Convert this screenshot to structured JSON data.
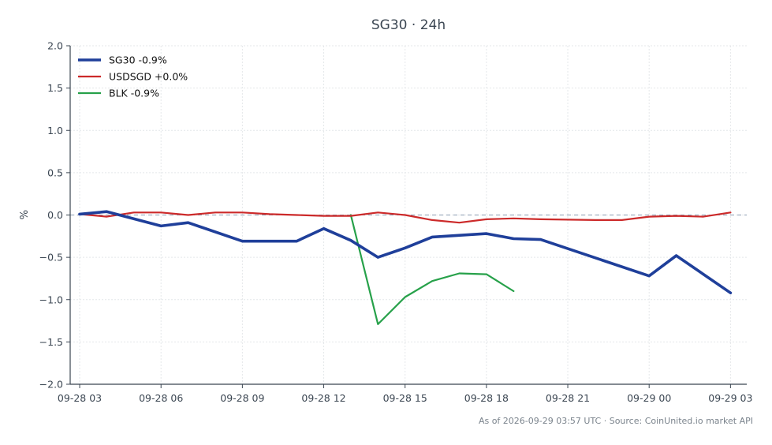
{
  "chart_data": {
    "type": "line",
    "title": "SG30 · 24h",
    "xlabel": "",
    "ylabel": "%",
    "ylim": [
      -2.0,
      2.0
    ],
    "xlim_hours": [
      -0.35,
      24.6
    ],
    "x_ticks": [
      {
        "label": "09-28 03",
        "h": 0
      },
      {
        "label": "09-28 06",
        "h": 3
      },
      {
        "label": "09-28 09",
        "h": 6
      },
      {
        "label": "09-28 12",
        "h": 9
      },
      {
        "label": "09-28 15",
        "h": 12
      },
      {
        "label": "09-28 18",
        "h": 15
      },
      {
        "label": "09-28 21",
        "h": 18
      },
      {
        "label": "09-29 00",
        "h": 21
      },
      {
        "label": "09-29 03",
        "h": 24
      }
    ],
    "y_ticks": [
      2.0,
      1.5,
      1.0,
      0.5,
      0.0,
      -0.5,
      -1.0,
      -1.5,
      -2.0
    ],
    "grid": true,
    "zero_line": true,
    "legend_position": "top-left",
    "series": [
      {
        "name": "SG30 -0.9%",
        "color": "#1f3f9a",
        "width": 3.6,
        "points": [
          [
            0,
            0.01
          ],
          [
            1,
            0.04
          ],
          [
            3,
            -0.13
          ],
          [
            4,
            -0.09
          ],
          [
            6,
            -0.31
          ],
          [
            7,
            -0.31
          ],
          [
            8,
            -0.31
          ],
          [
            9,
            -0.16
          ],
          [
            10,
            -0.3
          ],
          [
            11,
            -0.5
          ],
          [
            12,
            -0.39
          ],
          [
            13,
            -0.26
          ],
          [
            15,
            -0.22
          ],
          [
            16,
            -0.28
          ],
          [
            17,
            -0.29
          ],
          [
            21,
            -0.72
          ],
          [
            22,
            -0.48
          ],
          [
            24,
            -0.92
          ]
        ]
      },
      {
        "name": "USDSGD +0.0%",
        "color": "#cc2a2a",
        "width": 2.2,
        "points": [
          [
            0,
            0.01
          ],
          [
            1,
            -0.02
          ],
          [
            2,
            0.03
          ],
          [
            3,
            0.03
          ],
          [
            4,
            0.0
          ],
          [
            5,
            0.03
          ],
          [
            6,
            0.03
          ],
          [
            7,
            0.01
          ],
          [
            8,
            0.0
          ],
          [
            9,
            -0.01
          ],
          [
            10,
            -0.01
          ],
          [
            11,
            0.03
          ],
          [
            12,
            0.0
          ],
          [
            13,
            -0.06
          ],
          [
            14,
            -0.09
          ],
          [
            15,
            -0.05
          ],
          [
            16,
            -0.04
          ],
          [
            17,
            -0.05
          ],
          [
            19,
            -0.06
          ],
          [
            20,
            -0.06
          ],
          [
            21,
            -0.02
          ],
          [
            22,
            -0.01
          ],
          [
            23,
            -0.02
          ],
          [
            24,
            0.03
          ]
        ]
      },
      {
        "name": "BLK -0.9%",
        "color": "#27a14a",
        "width": 2.2,
        "points": [
          [
            10,
            0.0
          ],
          [
            11,
            -1.29
          ],
          [
            12,
            -0.97
          ],
          [
            13,
            -0.78
          ],
          [
            14,
            -0.69
          ],
          [
            15,
            -0.7
          ],
          [
            16,
            -0.9
          ]
        ]
      }
    ]
  },
  "footer": "As of 2026-09-29 03:57 UTC · Source: CoinUnited.io market API"
}
